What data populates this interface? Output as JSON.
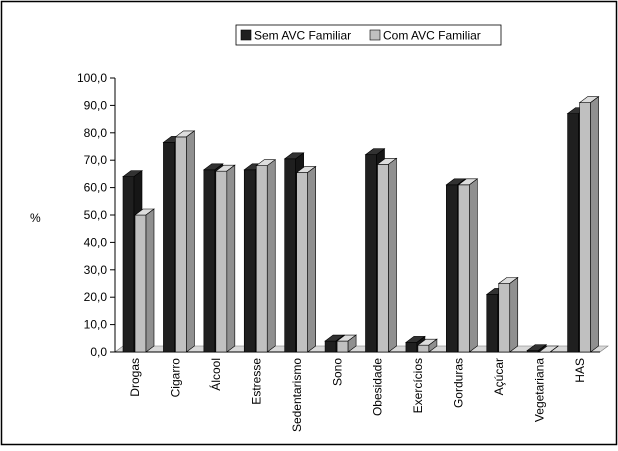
{
  "chart_data": {
    "type": "bar",
    "categories": [
      "Drogas",
      "Cigarro",
      "Álcool",
      "Estresse",
      "Sedentarismo",
      "Sono",
      "Obesidade",
      "Exercícios",
      "Gorduras",
      "Açúcar",
      "Vegetariana",
      "HAS"
    ],
    "series": [
      {
        "name": "Sem AVC Familiar",
        "color": "#1f1f1f",
        "values": [
          64.0,
          76.5,
          66.5,
          66.5,
          70.5,
          4.0,
          72.0,
          3.5,
          61.0,
          21.0,
          0.5,
          87.0
        ]
      },
      {
        "name": "Com AVC Familiar",
        "color": "#c0c0c0",
        "values": [
          50.0,
          78.5,
          66.0,
          68.0,
          65.5,
          4.0,
          68.5,
          2.5,
          61.0,
          25.0,
          0.0,
          91.0
        ]
      }
    ],
    "ylabel": "%",
    "ylim": [
      0,
      100
    ],
    "yticks": [
      "0,0",
      "10,0",
      "20,0",
      "30,0",
      "40,0",
      "50,0",
      "60,0",
      "70,0",
      "80,0",
      "90,0",
      "100,0"
    ],
    "legend_position": "top"
  }
}
